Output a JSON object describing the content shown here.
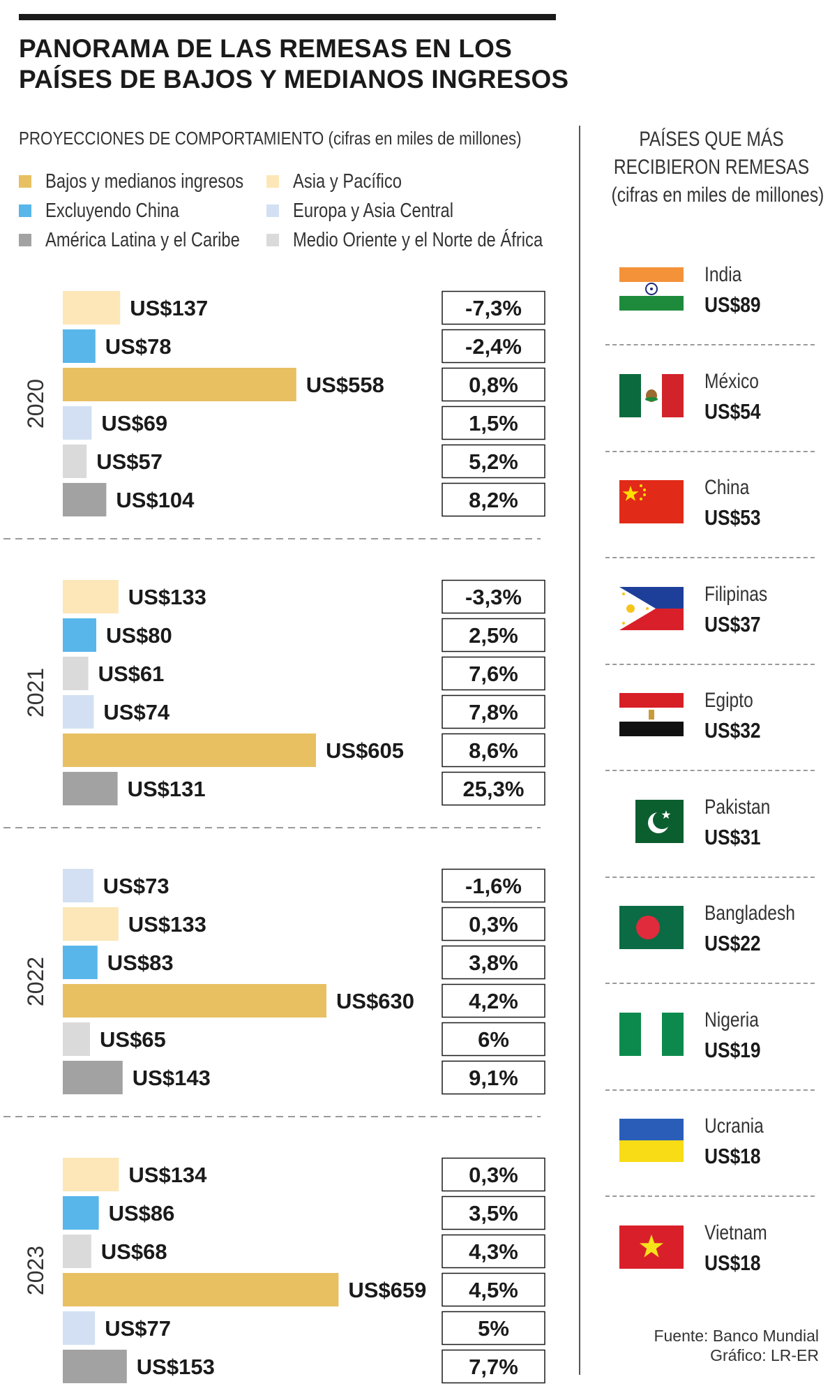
{
  "title_lines": [
    "PANORAMA DE LAS REMESAS EN LOS",
    "PAÍSES DE BAJOS Y MEDIANOS INGRESOS"
  ],
  "subtitle": "PROYECCIONES DE COMPORTAMIENTO (cifras en miles de millones)",
  "legend": [
    {
      "label": "Bajos y medianos ingresos",
      "color": "#e8c062"
    },
    {
      "label": "Asia y Pacífico",
      "color": "#fde7b8"
    },
    {
      "label": "Excluyendo China",
      "color": "#58b6ea"
    },
    {
      "label": "Europa y Asia Central",
      "color": "#d3e0f3"
    },
    {
      "label": "América Latina y el Caribe",
      "color": "#a2a2a2"
    },
    {
      "label": "Medio Oriente y el Norte de África",
      "color": "#dadada"
    }
  ],
  "chart_data": {
    "type": "bar",
    "orientation": "horizontal",
    "title": "PROYECCIONES DE COMPORTAMIENTO (cifras en miles de millones)",
    "unit_prefix": "US$",
    "groups": [
      {
        "year": "2020",
        "bars": [
          {
            "series": "Asia y Pacífico",
            "value": 137,
            "label": "US$137",
            "change": "-7,3%"
          },
          {
            "series": "Excluyendo China",
            "value": 78,
            "label": "US$78",
            "change": "-2,4%"
          },
          {
            "series": "Bajos y medianos ingresos",
            "value": 558,
            "label": "US$558",
            "change": "0,8%"
          },
          {
            "series": "Europa y Asia Central",
            "value": 69,
            "label": "US$69",
            "change": "1,5%"
          },
          {
            "series": "Medio Oriente y el Norte de África",
            "value": 57,
            "label": "US$57",
            "change": "5,2%"
          },
          {
            "series": "América Latina y el Caribe",
            "value": 104,
            "label": "US$104",
            "change": "8,2%"
          }
        ]
      },
      {
        "year": "2021",
        "bars": [
          {
            "series": "Asia y Pacífico",
            "value": 133,
            "label": "US$133",
            "change": "-3,3%"
          },
          {
            "series": "Excluyendo China",
            "value": 80,
            "label": "US$80",
            "change": "2,5%"
          },
          {
            "series": "Medio Oriente y el Norte de África",
            "value": 61,
            "label": "US$61",
            "change": "7,6%"
          },
          {
            "series": "Europa y Asia Central",
            "value": 74,
            "label": "US$74",
            "change": "7,8%"
          },
          {
            "series": "Bajos y medianos ingresos",
            "value": 605,
            "label": "US$605",
            "change": "8,6%"
          },
          {
            "series": "América Latina y el Caribe",
            "value": 131,
            "label": "US$131",
            "change": "25,3%"
          }
        ]
      },
      {
        "year": "2022",
        "bars": [
          {
            "series": "Europa y Asia Central",
            "value": 73,
            "label": "US$73",
            "change": "-1,6%"
          },
          {
            "series": "Asia y Pacífico",
            "value": 133,
            "label": "US$133",
            "change": "0,3%"
          },
          {
            "series": "Excluyendo China",
            "value": 83,
            "label": "US$83",
            "change": "3,8%"
          },
          {
            "series": "Bajos y medianos ingresos",
            "value": 630,
            "label": "US$630",
            "change": "4,2%"
          },
          {
            "series": "Medio Oriente y el Norte de África",
            "value": 65,
            "label": "US$65",
            "change": "6%"
          },
          {
            "series": "América Latina y el Caribe",
            "value": 143,
            "label": "US$143",
            "change": "9,1%"
          }
        ]
      },
      {
        "year": "2023",
        "bars": [
          {
            "series": "Asia y Pacífico",
            "value": 134,
            "label": "US$134",
            "change": "0,3%"
          },
          {
            "series": "Excluyendo China",
            "value": 86,
            "label": "US$86",
            "change": "3,5%"
          },
          {
            "series": "Medio Oriente y el Norte de África",
            "value": 68,
            "label": "US$68",
            "change": "4,3%"
          },
          {
            "series": "Bajos y medianos ingresos",
            "value": 659,
            "label": "US$659",
            "change": "4,5%"
          },
          {
            "series": "Europa y Asia Central",
            "value": 77,
            "label": "US$77",
            "change": "5%"
          },
          {
            "series": "América Latina y el Caribe",
            "value": 153,
            "label": "US$153",
            "change": "7,7%"
          }
        ]
      }
    ],
    "series_colors": {
      "Bajos y medianos ingresos": "#e8c062",
      "Asia y Pacífico": "#fde7b8",
      "Excluyendo China": "#58b6ea",
      "Europa y Asia Central": "#d3e0f3",
      "América Latina y el Caribe": "#a2a2a2",
      "Medio Oriente y el Norte de África": "#dadada"
    },
    "grid": false,
    "legend_position": "top"
  },
  "right_panel": {
    "title_lines": [
      "PAÍSES QUE MÁS",
      "RECIBIERON REMESAS",
      "(cifras en miles de millones)"
    ],
    "countries": [
      {
        "name": "India",
        "value": "US$89",
        "flag": "india-flag"
      },
      {
        "name": "México",
        "value": "US$54",
        "flag": "mexico-flag"
      },
      {
        "name": "China",
        "value": "US$53",
        "flag": "china-flag"
      },
      {
        "name": "Filipinas",
        "value": "US$37",
        "flag": "philippines-flag"
      },
      {
        "name": "Egipto",
        "value": "US$32",
        "flag": "egypt-flag"
      },
      {
        "name": "Pakistan",
        "value": "US$31",
        "flag": "pakistan-flag"
      },
      {
        "name": "Bangladesh",
        "value": "US$22",
        "flag": "bangladesh-flag"
      },
      {
        "name": "Nigeria",
        "value": "US$19",
        "flag": "nigeria-flag"
      },
      {
        "name": "Ucrania",
        "value": "US$18",
        "flag": "ukraine-flag"
      },
      {
        "name": "Vietnam",
        "value": "US$18",
        "flag": "vietnam-flag"
      }
    ]
  },
  "source_lines": [
    "Fuente: Banco Mundial",
    "Gráfico: LR-ER"
  ]
}
